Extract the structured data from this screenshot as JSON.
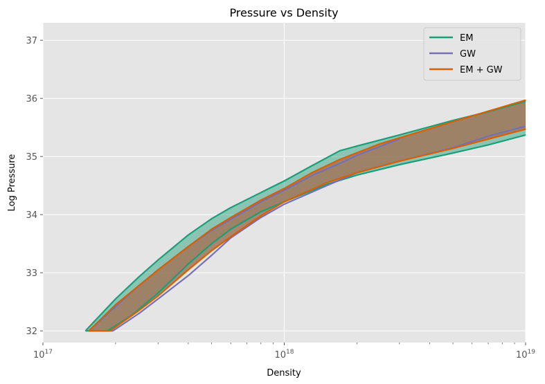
{
  "chart_data": {
    "type": "area",
    "title": "Pressure vs Density",
    "xlabel": "Density",
    "ylabel": "Log Pressure",
    "xscale": "log",
    "xlim": [
      1e+17,
      1e+19
    ],
    "ylim": [
      31.8,
      37.3
    ],
    "x_ticks": [
      {
        "value": 1e+17,
        "base": "10",
        "exp": "17"
      },
      {
        "value": 1e+18,
        "base": "10",
        "exp": "18"
      },
      {
        "value": 1e+19,
        "base": "10",
        "exp": "19"
      }
    ],
    "y_ticks": [
      32,
      33,
      34,
      35,
      36,
      37
    ],
    "grid": true,
    "legend_position": "top-right",
    "series": [
      {
        "name": "EM",
        "color": "#1b9e77",
        "fill_color": "#1b9e77",
        "fill_opacity": 0.45,
        "upper": {
          "x": [
            1.5e+17,
            2e+17,
            2.5e+17,
            3e+17,
            4e+17,
            5e+17,
            6e+17,
            8e+17,
            1e+18,
            1.3e+18,
            1.7e+18,
            2e+18,
            3e+18,
            5e+18,
            7e+18,
            1e+19
          ],
          "y": [
            32.0,
            32.55,
            32.93,
            33.22,
            33.65,
            33.93,
            34.12,
            34.38,
            34.58,
            34.84,
            35.1,
            35.18,
            35.37,
            35.62,
            35.77,
            35.95
          ]
        },
        "lower": {
          "x": [
            1.85e+17,
            2.3e+17,
            3e+17,
            4e+17,
            5e+17,
            6e+17,
            8e+17,
            1e+18,
            1.5e+18,
            2e+18,
            3e+18,
            5e+18,
            7e+18,
            1e+19
          ],
          "y": [
            32.0,
            32.25,
            32.65,
            33.15,
            33.5,
            33.75,
            34.05,
            34.22,
            34.52,
            34.68,
            34.86,
            35.06,
            35.2,
            35.37
          ]
        }
      },
      {
        "name": "GW",
        "color": "#7570b3",
        "fill_color": "#8c7aa8",
        "fill_opacity": 0.0,
        "upper": {
          "x": [
            1.55e+17,
            2e+17,
            2.5e+17,
            3e+17,
            4e+17,
            5e+17,
            6e+17,
            8e+17,
            1e+18,
            1.3e+18,
            1.7e+18,
            2e+18,
            3e+18
          ],
          "y": [
            32.0,
            32.42,
            32.78,
            33.05,
            33.45,
            33.73,
            33.92,
            34.22,
            34.42,
            34.67,
            34.88,
            35.02,
            35.3
          ]
        },
        "lower": {
          "x": [
            1.95e+17,
            2.5e+17,
            3e+17,
            4e+17,
            5e+17,
            6e+17,
            8e+17,
            1e+18,
            1.5e+18,
            2e+18,
            3e+18,
            5e+18,
            7e+18,
            1e+19
          ],
          "y": [
            32.0,
            32.3,
            32.55,
            32.95,
            33.3,
            33.6,
            33.95,
            34.18,
            34.5,
            34.72,
            34.92,
            35.15,
            35.35,
            35.52
          ]
        }
      },
      {
        "name": "EM + GW",
        "color": "#d95f02",
        "fill_color": "#a0765a",
        "fill_opacity": 0.85,
        "upper": {
          "x": [
            1.55e+17,
            2e+17,
            2.5e+17,
            3e+17,
            4e+17,
            5e+17,
            6e+17,
            8e+17,
            1e+18,
            1.3e+18,
            1.7e+18,
            2.5e+18,
            3e+18,
            5e+18,
            7e+18,
            1e+19
          ],
          "y": [
            32.0,
            32.45,
            32.78,
            33.05,
            33.45,
            33.75,
            33.95,
            34.25,
            34.45,
            34.72,
            34.95,
            35.22,
            35.32,
            35.6,
            35.78,
            35.97
          ]
        },
        "lower": {
          "x": [
            1.9e+17,
            2.5e+17,
            3e+17,
            4e+17,
            5e+17,
            6e+17,
            8e+17,
            1e+18,
            1.5e+18,
            2e+18,
            3e+18,
            5e+18,
            7e+18,
            1e+19
          ],
          "y": [
            32.0,
            32.35,
            32.6,
            33.05,
            33.38,
            33.62,
            33.98,
            34.22,
            34.55,
            34.72,
            34.92,
            35.14,
            35.3,
            35.47
          ]
        }
      }
    ]
  }
}
